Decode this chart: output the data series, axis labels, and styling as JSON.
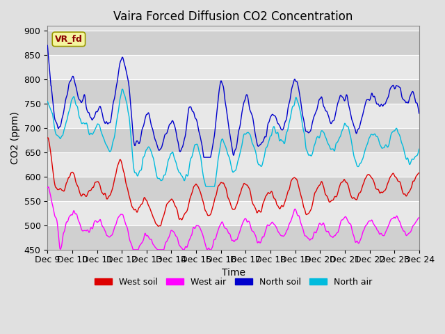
{
  "title": "Vaira Forced Diffusion CO2 Concentration",
  "xlabel": "Time",
  "ylabel": "CO2 (ppm)",
  "ylim": [
    450,
    910
  ],
  "yticks": [
    450,
    500,
    550,
    600,
    650,
    700,
    750,
    800,
    850,
    900
  ],
  "annotation_text": "VR_fd",
  "legend_labels": [
    "West soil",
    "West air",
    "North soil",
    "North air"
  ],
  "line_colors": [
    "#dd0000",
    "#ff00ff",
    "#0000cc",
    "#00bbdd"
  ],
  "background_color": "#e0e0e0",
  "plot_bg_color": "#e0e0e0",
  "grid_color": "#ffffff",
  "title_fontsize": 12,
  "axis_fontsize": 10,
  "tick_fontsize": 9,
  "x_start": 9,
  "x_end": 24,
  "xtick_positions": [
    9,
    10,
    11,
    12,
    13,
    14,
    15,
    16,
    17,
    18,
    19,
    20,
    21,
    22,
    23,
    24
  ],
  "xtick_labels": [
    "Dec 9",
    "Dec 10",
    "Dec 11",
    "Dec 12",
    "Dec 13",
    "Dec 14",
    "Dec 15",
    "Dec 16",
    "Dec 17",
    "Dec 18",
    "Dec 19",
    "Dec 20",
    "Dec 21",
    "Dec 22",
    "Dec 23",
    "Dec 24"
  ]
}
